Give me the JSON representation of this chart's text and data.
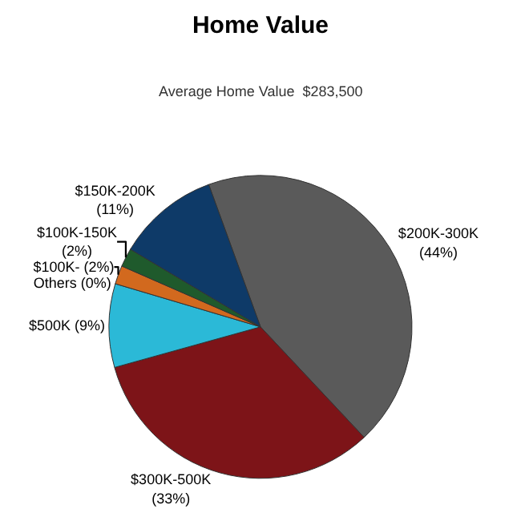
{
  "chart_data": {
    "type": "pie",
    "title": "Home Value",
    "subtitle": "Average Home Value  $283,500",
    "categories": [
      "$200K-300K",
      "$300K-500K",
      "$500K",
      "Others",
      "$100K-",
      "$100K-150K",
      "$150K-200K"
    ],
    "values": [
      44,
      33,
      9,
      0,
      2,
      2,
      11
    ],
    "value_labels": [
      "(44%)",
      "(33%)",
      "(9%)",
      "(0%)",
      "(2%)",
      "(2%)",
      "(11%)"
    ],
    "colors": [
      "#5a5a5a",
      "#7d1418",
      "#2bb9d7",
      "#3a7a3a",
      "#d2691e",
      "#1f5a2c",
      "#0e3a68"
    ],
    "legend": false
  }
}
